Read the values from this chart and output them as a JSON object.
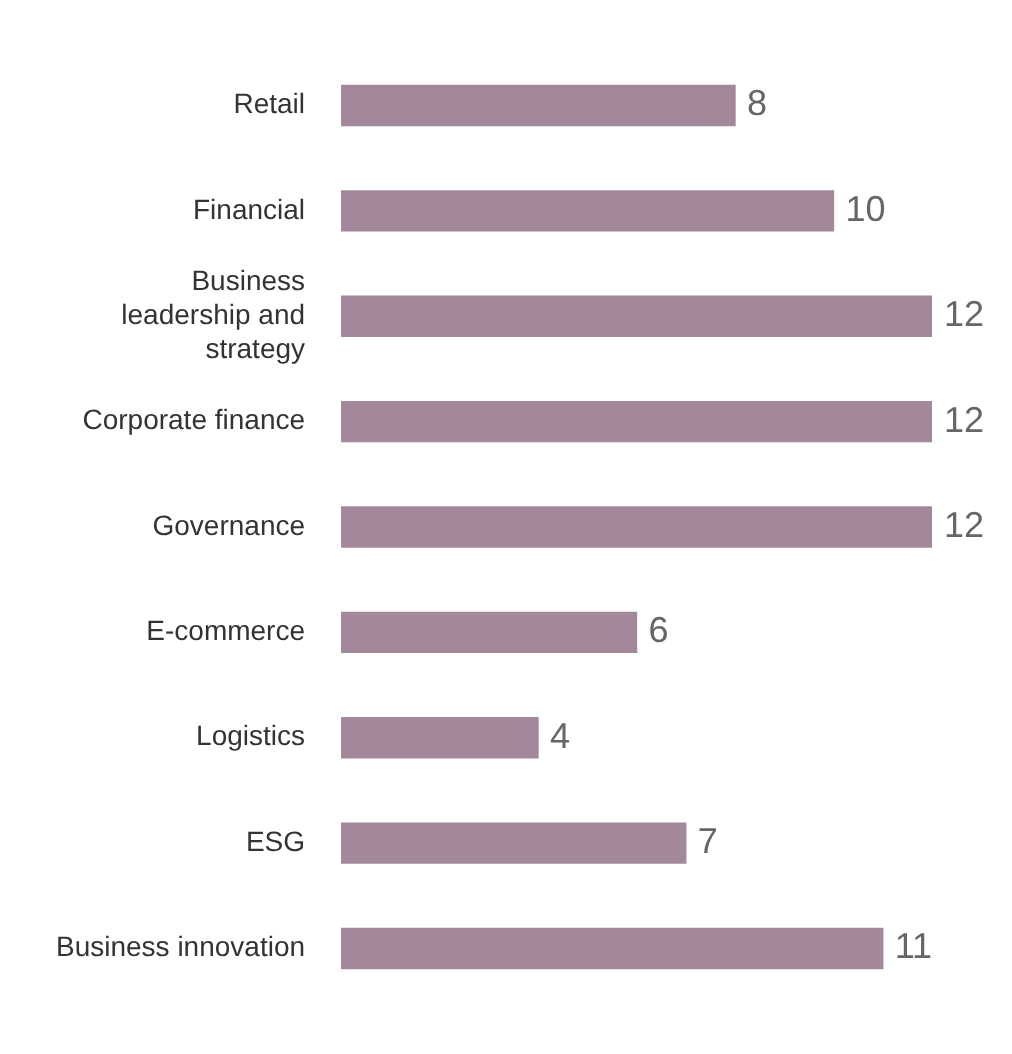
{
  "chart_data": {
    "type": "bar",
    "orientation": "horizontal",
    "categories": [
      "Retail",
      "Financial",
      "Business leadership and strategy",
      "Corporate finance",
      "Governance",
      "E-commerce",
      "Logistics",
      "ESG",
      "Business innovation"
    ],
    "values": [
      8,
      10,
      12,
      12,
      12,
      6,
      4,
      7,
      11
    ],
    "color": "#a3879b",
    "data_labels": true,
    "grid": false,
    "legend": false
  }
}
